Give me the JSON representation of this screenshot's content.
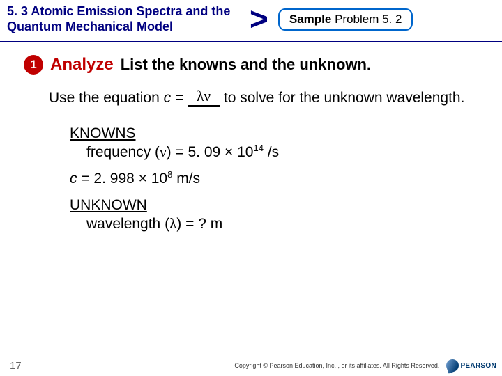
{
  "header": {
    "section_title": "5. 3 Atomic Emission Spectra and the Quantum Mechanical Model",
    "sample_bold": "Sample",
    "sample_rest": " Problem 5. 2"
  },
  "step": {
    "number": "1",
    "label": "Analyze",
    "text": "List the knowns and the unknown."
  },
  "para": {
    "pre": "Use the equation ",
    "c": "c",
    "eq": " = ",
    "lambda_nu": "λν",
    "post": " to solve for the unknown wavelength."
  },
  "knowns": {
    "title": "KNOWNS",
    "freq_label": "frequency (",
    "nu": "ν",
    "freq_close": ") = 5. 09 × 10",
    "freq_exp": "14",
    "freq_unit": " /s",
    "c_label": "c",
    "c_rest": " = 2. 998 × 10",
    "c_exp": "8",
    "c_unit": " m/s"
  },
  "unknown": {
    "title": "UNKNOWN",
    "line_pre": "wavelength (",
    "lambda": "λ",
    "line_post": ") = ? m"
  },
  "footer": {
    "page": "17",
    "copyright": "Copyright © Pearson Education, Inc. , or its affiliates. All Rights Reserved.",
    "brand": "PEARSON"
  },
  "colors": {
    "navy": "#000080",
    "red": "#c00000",
    "link_blue": "#0066cc"
  }
}
